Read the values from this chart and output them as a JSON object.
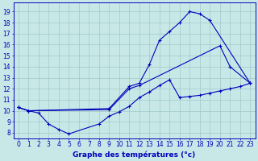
{
  "line1_x": [
    0,
    1,
    9,
    11,
    12,
    13,
    14,
    15,
    16,
    17,
    18,
    19,
    23
  ],
  "line1_y": [
    10.3,
    10.0,
    10.2,
    12.2,
    12.5,
    14.2,
    16.4,
    17.2,
    18.0,
    19.0,
    18.8,
    18.2,
    12.5
  ],
  "line2_x": [
    0,
    1,
    9,
    11,
    12,
    20,
    21,
    23
  ],
  "line2_y": [
    10.3,
    10.0,
    10.1,
    12.0,
    12.3,
    15.9,
    14.0,
    12.5
  ],
  "line3_x": [
    0,
    1,
    2,
    3,
    4,
    5,
    8,
    9,
    10,
    11,
    12,
    13,
    14,
    15,
    16,
    17,
    18,
    19,
    20,
    21,
    22,
    23
  ],
  "line3_y": [
    10.3,
    10.0,
    9.8,
    8.8,
    8.3,
    7.9,
    8.8,
    9.5,
    9.9,
    10.4,
    11.2,
    11.7,
    12.3,
    12.8,
    11.2,
    11.3,
    11.4,
    11.6,
    11.8,
    12.0,
    12.2,
    12.5
  ],
  "bg_color": "#c8e8e8",
  "grid_color": "#a0c8c8",
  "line_color": "#0000bb",
  "axis_color": "#0000bb",
  "xlim": [
    -0.5,
    23.5
  ],
  "ylim": [
    7.5,
    19.8
  ],
  "xticks": [
    0,
    1,
    2,
    3,
    4,
    5,
    6,
    7,
    8,
    9,
    10,
    11,
    12,
    13,
    14,
    15,
    16,
    17,
    18,
    19,
    20,
    21,
    22,
    23
  ],
  "yticks": [
    8,
    9,
    10,
    11,
    12,
    13,
    14,
    15,
    16,
    17,
    18,
    19
  ],
  "xlabel": "Graphe des températures (°c)",
  "label_fontsize": 6.5,
  "tick_fontsize": 5.5
}
